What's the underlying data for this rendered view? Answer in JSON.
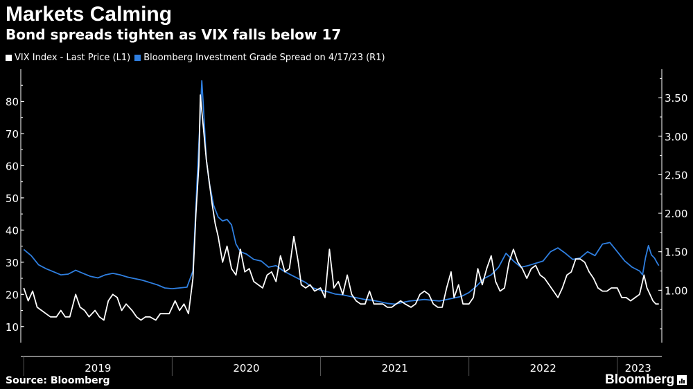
{
  "header": {
    "title": "Markets Calming",
    "subtitle": "Bond spreads tighten as VIX falls below 17"
  },
  "footer": {
    "source": "Source: Bloomberg",
    "brand": "Bloomberg"
  },
  "colors": {
    "vix": "#ffffff",
    "spread": "#2f7fe0",
    "background": "#000000"
  },
  "chart_data": {
    "type": "line",
    "title": "Markets Calming",
    "subtitle": "Bond spreads tighten as VIX falls below 17",
    "x_unit": "decimal year",
    "xlim": [
      2018.98,
      2023.3
    ],
    "x_labels": [
      {
        "label": "2019",
        "x": 2019.5
      },
      {
        "label": "2020",
        "x": 2020.5
      },
      {
        "label": "2021",
        "x": 2021.5
      },
      {
        "label": "2022",
        "x": 2022.5
      },
      {
        "label": "2023",
        "x": 2023.14
      }
    ],
    "x_dividers": [
      2019.0,
      2020.0,
      2021.0,
      2022.0,
      2023.0
    ],
    "y_left": {
      "label": "L1",
      "lim": [
        5,
        90
      ],
      "ticks": [
        10,
        20,
        30,
        40,
        50,
        60,
        70,
        80
      ]
    },
    "y_right": {
      "label": "R1",
      "lim": [
        0.32,
        3.87
      ],
      "ticks": [
        "1.00",
        "1.50",
        "2.00",
        "2.50",
        "3.00",
        "3.50"
      ]
    },
    "legend": {
      "position": "top-left"
    },
    "series": [
      {
        "name": "VIX Index - Last Price (L1)",
        "axis": "left",
        "points": [
          [
            2019.0,
            22
          ],
          [
            2019.03,
            18
          ],
          [
            2019.06,
            21
          ],
          [
            2019.09,
            16
          ],
          [
            2019.12,
            15
          ],
          [
            2019.15,
            14
          ],
          [
            2019.18,
            13
          ],
          [
            2019.22,
            13
          ],
          [
            2019.25,
            15
          ],
          [
            2019.28,
            13
          ],
          [
            2019.31,
            13
          ],
          [
            2019.35,
            20
          ],
          [
            2019.38,
            16
          ],
          [
            2019.41,
            15
          ],
          [
            2019.44,
            13
          ],
          [
            2019.48,
            15
          ],
          [
            2019.51,
            13
          ],
          [
            2019.54,
            12
          ],
          [
            2019.57,
            18
          ],
          [
            2019.6,
            20
          ],
          [
            2019.63,
            19
          ],
          [
            2019.66,
            15
          ],
          [
            2019.69,
            17
          ],
          [
            2019.73,
            15
          ],
          [
            2019.76,
            13
          ],
          [
            2019.79,
            12
          ],
          [
            2019.82,
            13
          ],
          [
            2019.85,
            13
          ],
          [
            2019.89,
            12
          ],
          [
            2019.92,
            14
          ],
          [
            2019.95,
            14
          ],
          [
            2019.98,
            14
          ],
          [
            2020.02,
            18
          ],
          [
            2020.05,
            15
          ],
          [
            2020.08,
            17
          ],
          [
            2020.11,
            14
          ],
          [
            2020.14,
            25
          ],
          [
            2020.16,
            45
          ],
          [
            2020.18,
            60
          ],
          [
            2020.19,
            82
          ],
          [
            2020.21,
            72
          ],
          [
            2020.23,
            62
          ],
          [
            2020.25,
            55
          ],
          [
            2020.27,
            48
          ],
          [
            2020.29,
            42
          ],
          [
            2020.31,
            38
          ],
          [
            2020.34,
            30
          ],
          [
            2020.37,
            35
          ],
          [
            2020.4,
            28
          ],
          [
            2020.43,
            26
          ],
          [
            2020.46,
            34
          ],
          [
            2020.49,
            27
          ],
          [
            2020.52,
            28
          ],
          [
            2020.55,
            24
          ],
          [
            2020.58,
            23
          ],
          [
            2020.61,
            22
          ],
          [
            2020.64,
            26
          ],
          [
            2020.67,
            27
          ],
          [
            2020.7,
            24
          ],
          [
            2020.73,
            32
          ],
          [
            2020.76,
            27
          ],
          [
            2020.79,
            28
          ],
          [
            2020.82,
            38
          ],
          [
            2020.85,
            30
          ],
          [
            2020.87,
            23
          ],
          [
            2020.9,
            22
          ],
          [
            2020.93,
            23
          ],
          [
            2020.96,
            21
          ],
          [
            2021.0,
            22
          ],
          [
            2021.03,
            19
          ],
          [
            2021.06,
            34
          ],
          [
            2021.09,
            22
          ],
          [
            2021.12,
            24
          ],
          [
            2021.15,
            20
          ],
          [
            2021.18,
            26
          ],
          [
            2021.21,
            20
          ],
          [
            2021.24,
            18
          ],
          [
            2021.27,
            17
          ],
          [
            2021.3,
            17
          ],
          [
            2021.33,
            21
          ],
          [
            2021.36,
            17
          ],
          [
            2021.39,
            17
          ],
          [
            2021.42,
            17
          ],
          [
            2021.45,
            16
          ],
          [
            2021.48,
            16
          ],
          [
            2021.51,
            17
          ],
          [
            2021.54,
            18
          ],
          [
            2021.57,
            17
          ],
          [
            2021.61,
            16
          ],
          [
            2021.64,
            17
          ],
          [
            2021.67,
            20
          ],
          [
            2021.7,
            21
          ],
          [
            2021.73,
            20
          ],
          [
            2021.76,
            17
          ],
          [
            2021.79,
            16
          ],
          [
            2021.82,
            16
          ],
          [
            2021.85,
            22
          ],
          [
            2021.88,
            27
          ],
          [
            2021.9,
            19
          ],
          [
            2021.93,
            23
          ],
          [
            2021.96,
            17
          ],
          [
            2022.0,
            17
          ],
          [
            2022.03,
            19
          ],
          [
            2022.06,
            28
          ],
          [
            2022.09,
            23
          ],
          [
            2022.12,
            28
          ],
          [
            2022.15,
            32
          ],
          [
            2022.18,
            24
          ],
          [
            2022.21,
            21
          ],
          [
            2022.24,
            22
          ],
          [
            2022.27,
            30
          ],
          [
            2022.3,
            34
          ],
          [
            2022.33,
            30
          ],
          [
            2022.36,
            28
          ],
          [
            2022.39,
            25
          ],
          [
            2022.42,
            28
          ],
          [
            2022.45,
            29
          ],
          [
            2022.48,
            26
          ],
          [
            2022.51,
            25
          ],
          [
            2022.54,
            23
          ],
          [
            2022.57,
            21
          ],
          [
            2022.6,
            19
          ],
          [
            2022.63,
            22
          ],
          [
            2022.66,
            26
          ],
          [
            2022.69,
            27
          ],
          [
            2022.72,
            31
          ],
          [
            2022.75,
            31
          ],
          [
            2022.78,
            30
          ],
          [
            2022.81,
            27
          ],
          [
            2022.84,
            25
          ],
          [
            2022.87,
            22
          ],
          [
            2022.9,
            21
          ],
          [
            2022.93,
            21
          ],
          [
            2022.96,
            22
          ],
          [
            2023.0,
            22
          ],
          [
            2023.03,
            19
          ],
          [
            2023.06,
            19
          ],
          [
            2023.09,
            18
          ],
          [
            2023.12,
            19
          ],
          [
            2023.15,
            20
          ],
          [
            2023.18,
            26
          ],
          [
            2023.2,
            22
          ],
          [
            2023.22,
            20
          ],
          [
            2023.24,
            18
          ],
          [
            2023.26,
            17
          ],
          [
            2023.28,
            17
          ]
        ]
      },
      {
        "name": "Bloomberg Investment Grade Spread on 4/17/23 (R1)",
        "axis": "right",
        "points": [
          [
            2019.0,
            1.53
          ],
          [
            2019.05,
            1.45
          ],
          [
            2019.1,
            1.33
          ],
          [
            2019.15,
            1.28
          ],
          [
            2019.2,
            1.24
          ],
          [
            2019.25,
            1.2
          ],
          [
            2019.3,
            1.21
          ],
          [
            2019.35,
            1.26
          ],
          [
            2019.4,
            1.22
          ],
          [
            2019.45,
            1.18
          ],
          [
            2019.5,
            1.16
          ],
          [
            2019.55,
            1.2
          ],
          [
            2019.6,
            1.22
          ],
          [
            2019.65,
            1.2
          ],
          [
            2019.7,
            1.17
          ],
          [
            2019.75,
            1.15
          ],
          [
            2019.8,
            1.13
          ],
          [
            2019.85,
            1.1
          ],
          [
            2019.9,
            1.07
          ],
          [
            2019.95,
            1.03
          ],
          [
            2020.0,
            1.02
          ],
          [
            2020.05,
            1.03
          ],
          [
            2020.1,
            1.04
          ],
          [
            2020.14,
            1.25
          ],
          [
            2020.17,
            2.5
          ],
          [
            2020.19,
            3.3
          ],
          [
            2020.2,
            3.72
          ],
          [
            2020.21,
            3.4
          ],
          [
            2020.23,
            2.7
          ],
          [
            2020.25,
            2.4
          ],
          [
            2020.28,
            2.1
          ],
          [
            2020.31,
            1.95
          ],
          [
            2020.34,
            1.9
          ],
          [
            2020.37,
            1.92
          ],
          [
            2020.4,
            1.85
          ],
          [
            2020.43,
            1.6
          ],
          [
            2020.46,
            1.5
          ],
          [
            2020.5,
            1.47
          ],
          [
            2020.55,
            1.4
          ],
          [
            2020.6,
            1.38
          ],
          [
            2020.65,
            1.3
          ],
          [
            2020.7,
            1.32
          ],
          [
            2020.75,
            1.25
          ],
          [
            2020.8,
            1.2
          ],
          [
            2020.85,
            1.15
          ],
          [
            2020.9,
            1.1
          ],
          [
            2020.95,
            1.03
          ],
          [
            2021.0,
            1.0
          ],
          [
            2021.05,
            0.98
          ],
          [
            2021.1,
            0.95
          ],
          [
            2021.15,
            0.94
          ],
          [
            2021.2,
            0.92
          ],
          [
            2021.25,
            0.9
          ],
          [
            2021.3,
            0.88
          ],
          [
            2021.35,
            0.87
          ],
          [
            2021.4,
            0.85
          ],
          [
            2021.45,
            0.83
          ],
          [
            2021.5,
            0.82
          ],
          [
            2021.55,
            0.84
          ],
          [
            2021.6,
            0.86
          ],
          [
            2021.65,
            0.87
          ],
          [
            2021.7,
            0.88
          ],
          [
            2021.75,
            0.87
          ],
          [
            2021.8,
            0.86
          ],
          [
            2021.85,
            0.88
          ],
          [
            2021.9,
            0.9
          ],
          [
            2021.95,
            0.92
          ],
          [
            2022.0,
            0.97
          ],
          [
            2022.05,
            1.05
          ],
          [
            2022.1,
            1.15
          ],
          [
            2022.15,
            1.2
          ],
          [
            2022.2,
            1.3
          ],
          [
            2022.25,
            1.48
          ],
          [
            2022.3,
            1.38
          ],
          [
            2022.35,
            1.3
          ],
          [
            2022.4,
            1.32
          ],
          [
            2022.45,
            1.35
          ],
          [
            2022.5,
            1.38
          ],
          [
            2022.55,
            1.5
          ],
          [
            2022.6,
            1.55
          ],
          [
            2022.65,
            1.48
          ],
          [
            2022.7,
            1.4
          ],
          [
            2022.75,
            1.42
          ],
          [
            2022.8,
            1.5
          ],
          [
            2022.85,
            1.45
          ],
          [
            2022.9,
            1.6
          ],
          [
            2022.95,
            1.62
          ],
          [
            2023.0,
            1.5
          ],
          [
            2023.05,
            1.38
          ],
          [
            2023.1,
            1.3
          ],
          [
            2023.15,
            1.25
          ],
          [
            2023.17,
            1.2
          ],
          [
            2023.19,
            1.42
          ],
          [
            2023.21,
            1.58
          ],
          [
            2023.23,
            1.46
          ],
          [
            2023.25,
            1.42
          ],
          [
            2023.27,
            1.35
          ],
          [
            2023.28,
            1.32
          ]
        ]
      }
    ]
  }
}
